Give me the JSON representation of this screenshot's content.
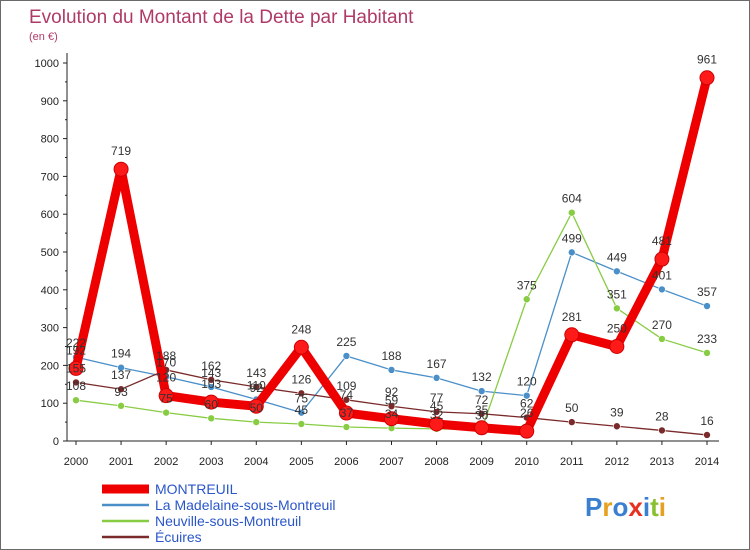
{
  "chart_data": {
    "type": "line",
    "title": "Evolution du Montant de la Dette par Habitant",
    "subtitle": "(en €)",
    "x": [
      "2000",
      "2001",
      "2002",
      "2003",
      "2004",
      "2005",
      "2006",
      "2007",
      "2008",
      "2009",
      "2010",
      "2011",
      "2012",
      "2013",
      "2014"
    ],
    "ylim": [
      0,
      1000
    ],
    "yticks": [
      0,
      100,
      200,
      300,
      400,
      500,
      600,
      700,
      800,
      900,
      1000
    ],
    "grid": false,
    "legend_position": "bottom-left",
    "series": [
      {
        "name": "MONTREUIL",
        "color": "#ee0000",
        "values": [
          192,
          719,
          120,
          103,
          92,
          248,
          74,
          59,
          45,
          35,
          26,
          281,
          250,
          481,
          961
        ]
      },
      {
        "name": "La Madelaine-sous-Montreuil",
        "color": "#4a8fc8",
        "values": [
          222,
          194,
          170,
          143,
          110,
          75,
          225,
          188,
          167,
          132,
          120,
          499,
          449,
          401,
          357
        ]
      },
      {
        "name": "Neuville-sous-Montreuil",
        "color": "#88cc44",
        "values": [
          108,
          93,
          75,
          60,
          50,
          45,
          37,
          34,
          32,
          30,
          375,
          604,
          351,
          270,
          233
        ]
      },
      {
        "name": "Écuires",
        "color": "#7a2a2a",
        "values": [
          155,
          137,
          188,
          162,
          143,
          126,
          109,
          92,
          77,
          72,
          62,
          50,
          39,
          28,
          16
        ]
      }
    ]
  },
  "logo": {
    "letters": [
      "P",
      "r",
      "o",
      "x",
      "i",
      "t",
      "i"
    ]
  }
}
